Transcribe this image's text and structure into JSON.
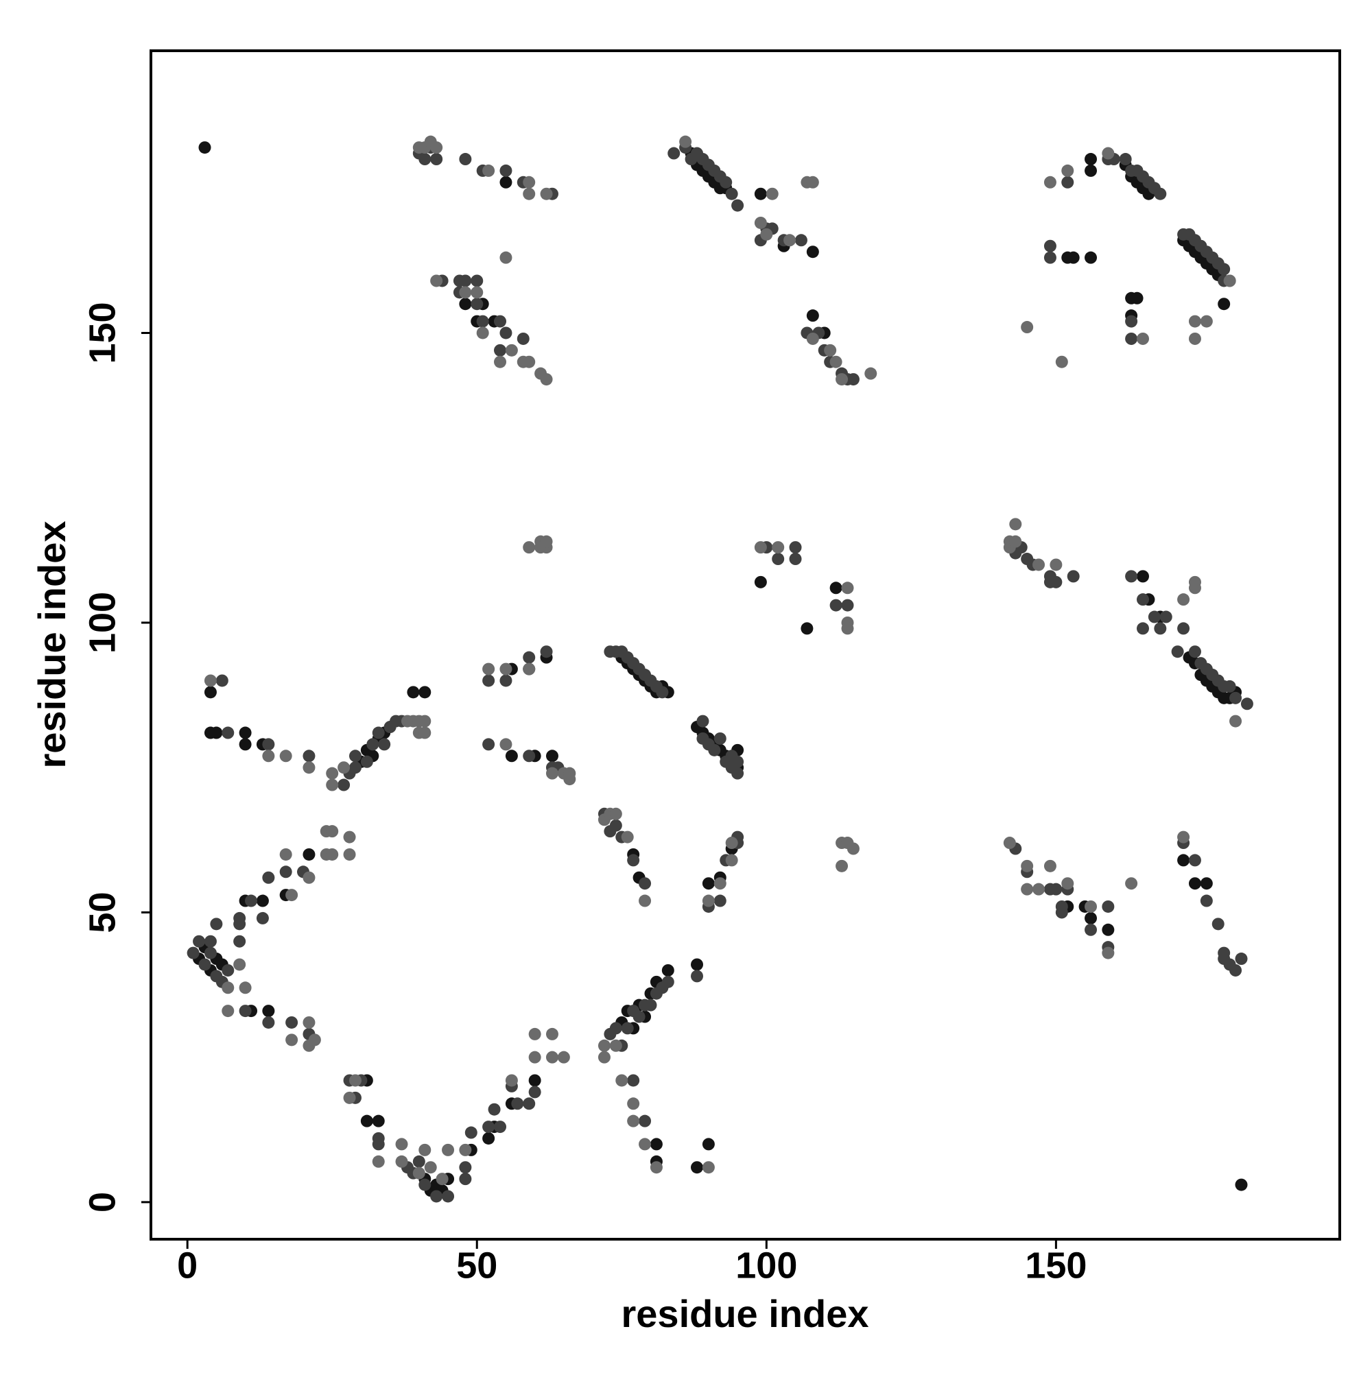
{
  "chart_data": {
    "type": "scatter",
    "xlabel": "residue index",
    "ylabel": "residue index",
    "xlim": [
      -6.3,
      199
    ],
    "ylim": [
      -6.4,
      198.7
    ],
    "xticks": [
      0,
      50,
      100,
      150
    ],
    "yticks": [
      0,
      50,
      100,
      150
    ],
    "series": [
      {
        "color": "#141414",
        "x": [
          3,
          4,
          4,
          5,
          10,
          10,
          13,
          30,
          31,
          32,
          33,
          34,
          39,
          41,
          56,
          59,
          62,
          56,
          60,
          63,
          75,
          76,
          77,
          78,
          79,
          80,
          81,
          82,
          83,
          88,
          89,
          90,
          91,
          92,
          93,
          94,
          95,
          95,
          77,
          78,
          81,
          81,
          88,
          90,
          88,
          99,
          107,
          112,
          2,
          3,
          4,
          5,
          6,
          10,
          11,
          14,
          13,
          17,
          21,
          31,
          31,
          33,
          41,
          42,
          43,
          44,
          45,
          49,
          52,
          53,
          56,
          60,
          75,
          76,
          77,
          78,
          79,
          80,
          81,
          83,
          152,
          155,
          156,
          159,
          174,
          176,
          172,
          165,
          166,
          168,
          173,
          174,
          175,
          176,
          177,
          178,
          179,
          180,
          181,
          48,
          50,
          51,
          53,
          55,
          87,
          88,
          89,
          90,
          91,
          92,
          93,
          99,
          103,
          108,
          108,
          110,
          156,
          156,
          162,
          163,
          164,
          165,
          166,
          152,
          153,
          156,
          163,
          164,
          163,
          172,
          173,
          174,
          175,
          176,
          177,
          178,
          179,
          182,
          94,
          92,
          90
        ],
        "values": [
          182,
          88,
          81,
          81,
          81,
          79,
          79,
          76,
          78,
          77,
          80,
          81,
          88,
          88,
          92,
          92,
          94,
          77,
          77,
          77,
          94,
          93,
          92,
          91,
          90,
          89,
          88,
          89,
          88,
          82,
          81,
          80,
          79,
          78,
          77,
          76,
          75,
          78,
          60,
          56,
          10,
          7,
          6,
          10,
          41,
          107,
          99,
          106,
          42,
          44,
          40,
          42,
          41,
          52,
          33,
          33,
          52,
          53,
          60,
          21,
          14,
          14,
          4,
          2,
          3,
          2,
          4,
          9,
          11,
          13,
          17,
          21,
          31,
          33,
          30,
          34,
          32,
          36,
          38,
          40,
          51,
          51,
          49,
          47,
          55,
          55,
          59,
          108,
          104,
          101,
          94,
          93,
          91,
          90,
          89,
          88,
          87,
          87,
          88,
          155,
          152,
          155,
          152,
          176,
          181,
          179,
          178,
          177,
          176,
          175,
          175,
          174,
          165,
          164,
          153,
          150,
          180,
          178,
          179,
          177,
          176,
          175,
          174,
          163,
          163,
          163,
          156,
          156,
          153,
          166,
          165,
          164,
          163,
          162,
          161,
          160,
          155,
          3,
          61,
          56,
          55
        ]
      },
      {
        "color": "#404040",
        "x": [
          1,
          2,
          3,
          4,
          4,
          5,
          6,
          7,
          5,
          9,
          9,
          11,
          13,
          14,
          17,
          18,
          21,
          20,
          14,
          10,
          9,
          28,
          29,
          30,
          33,
          33,
          38,
          39,
          40,
          41,
          43,
          45,
          48,
          48,
          49,
          52,
          53,
          54,
          56,
          57,
          59,
          60,
          73,
          74,
          75,
          76,
          77,
          78,
          79,
          80,
          81,
          82,
          83,
          72,
          73,
          74,
          75,
          77,
          79,
          77,
          79,
          90,
          92,
          93,
          95,
          95,
          88,
          6,
          7,
          14,
          21,
          27,
          28,
          29,
          29,
          31,
          32,
          33,
          34,
          35,
          36,
          37,
          52,
          55,
          59,
          62,
          52,
          59,
          63,
          64,
          73,
          74,
          75,
          76,
          77,
          78,
          79,
          80,
          81,
          82,
          89,
          89,
          90,
          91,
          92,
          93,
          94,
          95,
          94,
          95,
          100,
          105,
          102,
          105,
          112,
          114,
          143,
          144,
          145,
          146,
          149,
          149,
          150,
          153,
          163,
          165,
          167,
          169,
          168,
          165,
          171,
          172,
          174,
          175,
          176,
          177,
          178,
          179,
          180,
          181,
          183,
          143,
          145,
          149,
          150,
          151,
          151,
          152,
          156,
          159,
          159,
          172,
          174,
          176,
          178,
          179,
          180,
          181,
          182,
          40,
          41,
          42,
          43,
          48,
          51,
          55,
          58,
          63,
          44,
          47,
          48,
          47,
          50,
          50,
          51,
          54,
          55,
          54,
          58,
          84,
          86,
          87,
          88,
          89,
          90,
          91,
          92,
          93,
          94,
          95,
          100,
          101,
          99,
          103,
          106,
          107,
          109,
          110,
          111,
          113,
          114,
          115,
          152,
          159,
          160,
          162,
          163,
          164,
          165,
          166,
          167,
          168,
          149,
          149,
          163,
          163,
          172,
          173,
          174,
          175,
          176,
          177,
          178,
          179,
          180,
          179,
          179
        ],
        "values": [
          43,
          45,
          41,
          43,
          45,
          39,
          38,
          40,
          48,
          48,
          49,
          52,
          49,
          56,
          57,
          31,
          29,
          57,
          31,
          33,
          45,
          21,
          18,
          21,
          11,
          10,
          6,
          5,
          7,
          3,
          1,
          1,
          6,
          4,
          12,
          13,
          16,
          13,
          20,
          17,
          17,
          19,
          29,
          30,
          27,
          30,
          33,
          32,
          34,
          34,
          36,
          37,
          38,
          67,
          64,
          65,
          63,
          59,
          55,
          21,
          14,
          51,
          52,
          59,
          63,
          62,
          39,
          90,
          81,
          79,
          77,
          72,
          74,
          75,
          77,
          76,
          79,
          81,
          79,
          82,
          83,
          83,
          90,
          90,
          94,
          95,
          79,
          77,
          75,
          75,
          95,
          95,
          95,
          94,
          93,
          92,
          91,
          90,
          89,
          88,
          80,
          83,
          79,
          78,
          80,
          76,
          77,
          76,
          75,
          74,
          113,
          113,
          111,
          111,
          103,
          103,
          112,
          113,
          111,
          110,
          107,
          108,
          107,
          108,
          108,
          104,
          101,
          101,
          99,
          99,
          95,
          99,
          95,
          93,
          92,
          91,
          90,
          89,
          89,
          87,
          86,
          61,
          57,
          54,
          54,
          51,
          50,
          54,
          47,
          51,
          44,
          62,
          59,
          52,
          48,
          42,
          41,
          40,
          42,
          181,
          180,
          182,
          180,
          180,
          178,
          178,
          176,
          174,
          159,
          159,
          159,
          157,
          159,
          155,
          152,
          152,
          150,
          147,
          149,
          181,
          182,
          180,
          181,
          180,
          179,
          178,
          177,
          176,
          174,
          172,
          168,
          168,
          166,
          166,
          166,
          150,
          150,
          147,
          145,
          143,
          142,
          142,
          176,
          180,
          180,
          180,
          178,
          178,
          177,
          176,
          175,
          174,
          165,
          163,
          152,
          149,
          167,
          167,
          166,
          165,
          164,
          163,
          162,
          161,
          159,
          159,
          43
        ]
      },
      {
        "color": "#6b6b6b",
        "x": [
          7,
          7,
          9,
          10,
          18,
          17,
          18,
          21,
          22,
          21,
          21,
          24,
          24,
          25,
          25,
          28,
          28,
          28,
          29,
          33,
          37,
          37,
          40,
          41,
          42,
          44,
          45,
          48,
          56,
          60,
          60,
          63,
          63,
          65,
          72,
          72,
          74,
          75,
          77,
          77,
          79,
          81,
          90,
          4,
          14,
          17,
          21,
          25,
          25,
          27,
          38,
          39,
          40,
          40,
          41,
          41,
          52,
          55,
          59,
          55,
          63,
          65,
          66,
          66,
          72,
          73,
          74,
          76,
          79,
          90,
          92,
          94,
          94,
          99,
          102,
          114,
          114,
          114,
          113,
          114,
          115,
          113,
          59,
          61,
          61,
          62,
          62,
          142,
          142,
          143,
          143,
          147,
          150,
          172,
          174,
          174,
          181,
          142,
          145,
          145,
          147,
          149,
          152,
          156,
          159,
          163,
          172,
          40,
          41,
          42,
          43,
          52,
          59,
          59,
          62,
          43,
          50,
          48,
          51,
          54,
          56,
          58,
          59,
          61,
          62,
          55,
          86,
          99,
          101,
          100,
          104,
          107,
          108,
          108,
          111,
          112,
          113,
          118,
          149,
          152,
          159,
          145,
          151,
          165,
          174,
          174,
          176,
          180
        ],
        "values": [
          37,
          33,
          41,
          37,
          53,
          60,
          28,
          27,
          28,
          31,
          56,
          60,
          64,
          64,
          60,
          63,
          60,
          18,
          21,
          7,
          10,
          7,
          5,
          9,
          6,
          4,
          9,
          9,
          21,
          25,
          29,
          29,
          25,
          25,
          27,
          25,
          27,
          21,
          17,
          14,
          10,
          6,
          6,
          90,
          77,
          77,
          75,
          72,
          74,
          75,
          83,
          83,
          83,
          81,
          83,
          81,
          92,
          92,
          92,
          79,
          74,
          74,
          74,
          73,
          66,
          67,
          67,
          63,
          52,
          52,
          55,
          59,
          62,
          113,
          113,
          106,
          100,
          99,
          62,
          62,
          61,
          58,
          113,
          114,
          113,
          113,
          114,
          113,
          114,
          114,
          117,
          110,
          110,
          104,
          107,
          106,
          83,
          62,
          58,
          54,
          54,
          58,
          55,
          51,
          43,
          55,
          63,
          182,
          182,
          183,
          182,
          178,
          174,
          176,
          174,
          159,
          157,
          157,
          150,
          145,
          147,
          145,
          145,
          143,
          142,
          163,
          183,
          169,
          174,
          167,
          166,
          176,
          176,
          149,
          147,
          145,
          142,
          143,
          176,
          178,
          181,
          151,
          145,
          149,
          152,
          149,
          152,
          159
        ]
      }
    ]
  }
}
